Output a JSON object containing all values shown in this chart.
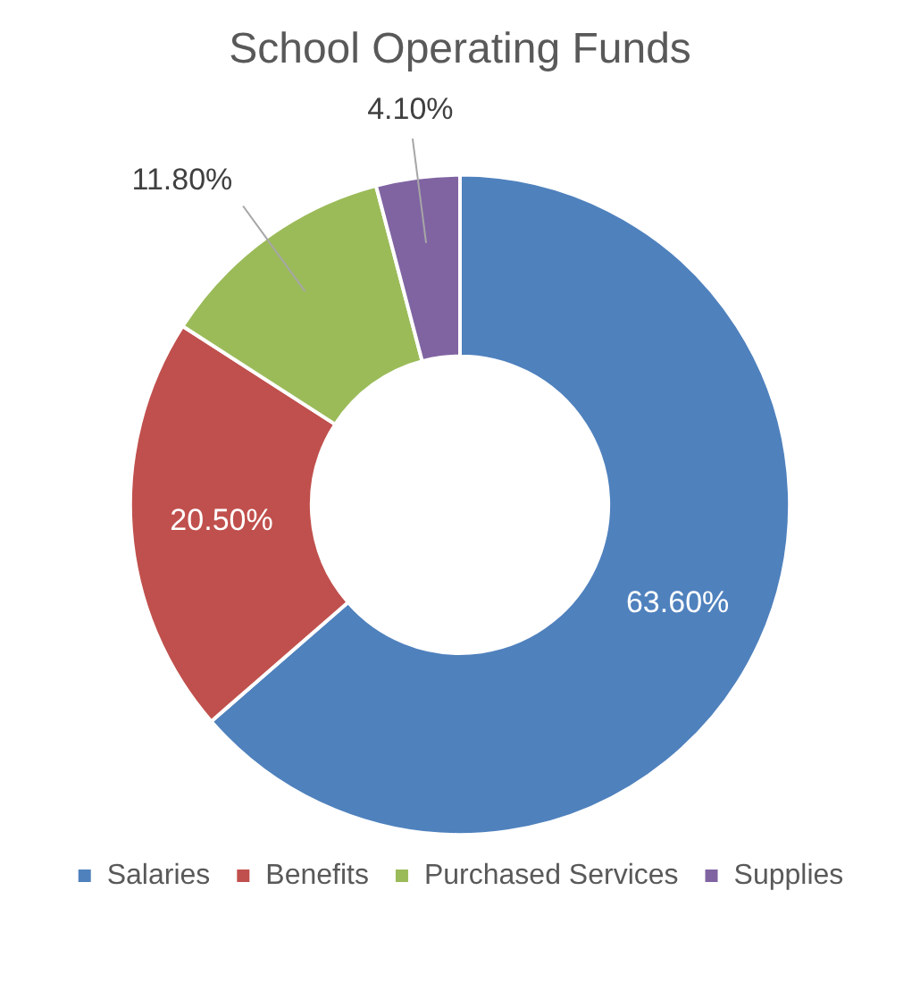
{
  "chart_data": {
    "type": "donut",
    "title": "School Operating Funds",
    "categories": [
      "Salaries",
      "Benefits",
      "Purchased Services",
      "Supplies"
    ],
    "values": [
      63.6,
      20.5,
      11.8,
      4.1
    ],
    "colors": [
      "#4f81bd",
      "#c0504d",
      "#9bbb59",
      "#8064a2"
    ],
    "value_labels": [
      "63.60%",
      "20.50%",
      "11.80%",
      "4.10%"
    ],
    "legend": "bottom"
  }
}
